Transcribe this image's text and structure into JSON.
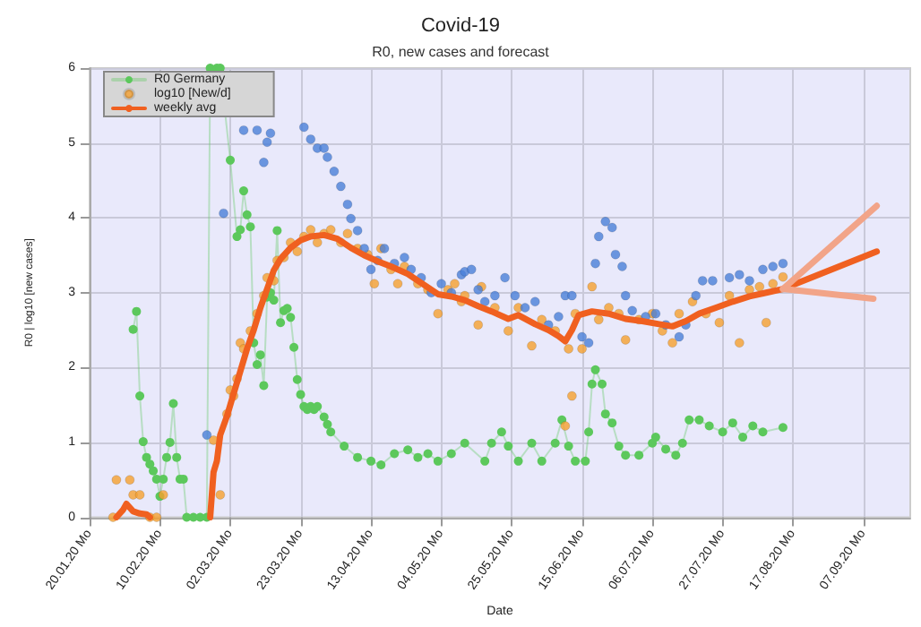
{
  "chart_data": {
    "type": "scatter",
    "title": "Covid-19",
    "subtitle": "R0, new cases and forecast",
    "xlabel": "Date",
    "ylabel": "R0 | log10 [new cases]",
    "xlim": [
      "2020-01-20",
      "2020-09-21"
    ],
    "ylim": [
      0,
      6
    ],
    "yticks": [
      0,
      1,
      2,
      3,
      4,
      5,
      6
    ],
    "xticks": [
      {
        "value": "2020-01-20",
        "label": "20.01.20 Mo"
      },
      {
        "value": "2020-02-10",
        "label": "10.02.20 Mo"
      },
      {
        "value": "2020-03-02",
        "label": "02.03.20 Mo"
      },
      {
        "value": "2020-03-23",
        "label": "23.03.20 Mo"
      },
      {
        "value": "2020-04-13",
        "label": "13.04.20 Mo"
      },
      {
        "value": "2020-05-04",
        "label": "04.05.20 Mo"
      },
      {
        "value": "2020-05-25",
        "label": "25.05.20 Mo"
      },
      {
        "value": "2020-06-15",
        "label": "15.06.20 Mo"
      },
      {
        "value": "2020-07-06",
        "label": "06.07.20 Mo"
      },
      {
        "value": "2020-07-27",
        "label": "27.07.20 Mo"
      },
      {
        "value": "2020-08-17",
        "label": "17.08.20 Mo"
      },
      {
        "value": "2020-09-07",
        "label": "07.09.20 Mo"
      }
    ],
    "grid": true,
    "legend": "top left",
    "series": [
      {
        "name": "R0 Germany",
        "type": "line",
        "marker": "circle",
        "color": "#5cc85c",
        "x": [
          "2020-02-02",
          "2020-02-03",
          "2020-02-04",
          "2020-02-05",
          "2020-02-06",
          "2020-02-07",
          "2020-02-08",
          "2020-02-09",
          "2020-02-10",
          "2020-02-11",
          "2020-02-12",
          "2020-02-13",
          "2020-02-14",
          "2020-02-15",
          "2020-02-16",
          "2020-02-17",
          "2020-02-18",
          "2020-02-20",
          "2020-02-22",
          "2020-02-24",
          "2020-02-25",
          "2020-02-27",
          "2020-02-28",
          "2020-03-02",
          "2020-03-04",
          "2020-03-05",
          "2020-03-06",
          "2020-03-07",
          "2020-03-08",
          "2020-03-09",
          "2020-03-10",
          "2020-03-11",
          "2020-03-12",
          "2020-03-13",
          "2020-03-14",
          "2020-03-15",
          "2020-03-16",
          "2020-03-17",
          "2020-03-18",
          "2020-03-19",
          "2020-03-20",
          "2020-03-21",
          "2020-03-22",
          "2020-03-23",
          "2020-03-24",
          "2020-03-25",
          "2020-03-26",
          "2020-03-27",
          "2020-03-28",
          "2020-03-30",
          "2020-03-31",
          "2020-04-01",
          "2020-04-05",
          "2020-04-09",
          "2020-04-13",
          "2020-04-16",
          "2020-04-20",
          "2020-04-24",
          "2020-04-27",
          "2020-04-30",
          "2020-05-03",
          "2020-05-07",
          "2020-05-11",
          "2020-05-17",
          "2020-05-19",
          "2020-05-22",
          "2020-05-24",
          "2020-05-27",
          "2020-05-31",
          "2020-06-03",
          "2020-06-07",
          "2020-06-09",
          "2020-06-11",
          "2020-06-13",
          "2020-06-16",
          "2020-06-17",
          "2020-06-18",
          "2020-06-19",
          "2020-06-21",
          "2020-06-22",
          "2020-06-24",
          "2020-06-26",
          "2020-06-28",
          "2020-07-02",
          "2020-07-06",
          "2020-07-07",
          "2020-07-10",
          "2020-07-13",
          "2020-07-15",
          "2020-07-17",
          "2020-07-20",
          "2020-07-23",
          "2020-07-27",
          "2020-07-30",
          "2020-08-02",
          "2020-08-05",
          "2020-08-08",
          "2020-08-14"
        ],
        "values": [
          2.51,
          2.75,
          1.62,
          1.01,
          0.8,
          0.71,
          0.62,
          0.51,
          0.28,
          0.51,
          0.8,
          1.0,
          1.52,
          0.8,
          0.51,
          0.51,
          0,
          0,
          0,
          0,
          6,
          6,
          6,
          4.77,
          3.75,
          3.84,
          4.36,
          4.04,
          3.88,
          2.33,
          2.04,
          2.17,
          1.76,
          2.94,
          3.0,
          2.9,
          3.83,
          2.6,
          2.76,
          2.79,
          2.67,
          2.27,
          1.84,
          1.64,
          1.48,
          1.44,
          1.48,
          1.44,
          1.48,
          1.34,
          1.24,
          1.14,
          0.95,
          0.8,
          0.75,
          0.7,
          0.85,
          0.9,
          0.8,
          0.85,
          0.75,
          0.85,
          0.99,
          0.75,
          0.99,
          1.14,
          0.95,
          0.75,
          0.99,
          0.75,
          0.99,
          1.3,
          0.95,
          0.75,
          0.75,
          1.14,
          1.78,
          1.97,
          1.78,
          1.38,
          1.26,
          0.95,
          0.83,
          0.83,
          0.99,
          1.07,
          0.91,
          0.83,
          0.99,
          1.3,
          1.3,
          1.22,
          1.14,
          1.26,
          1.07,
          1.22,
          1.14,
          1.2
        ]
      },
      {
        "name": "log10 [New/d]",
        "marker": "circle",
        "color": "#f5a030",
        "x": [
          "2020-01-27",
          "2020-01-28",
          "2020-02-01",
          "2020-02-02",
          "2020-02-04",
          "2020-02-07",
          "2020-02-09",
          "2020-02-11",
          "2020-02-26",
          "2020-02-28",
          "2020-03-01",
          "2020-03-02",
          "2020-03-03",
          "2020-03-04",
          "2020-03-05",
          "2020-03-06",
          "2020-03-08",
          "2020-03-10",
          "2020-03-12",
          "2020-03-13",
          "2020-03-15",
          "2020-03-16",
          "2020-03-18",
          "2020-03-20",
          "2020-03-22",
          "2020-03-24",
          "2020-03-26",
          "2020-03-28",
          "2020-03-30",
          "2020-04-01",
          "2020-04-04",
          "2020-04-06",
          "2020-04-09",
          "2020-04-12",
          "2020-04-14",
          "2020-04-16",
          "2020-04-19",
          "2020-04-21",
          "2020-04-23",
          "2020-04-27",
          "2020-04-30",
          "2020-05-03",
          "2020-05-06",
          "2020-05-08",
          "2020-05-10",
          "2020-05-11",
          "2020-05-15",
          "2020-05-16",
          "2020-05-20",
          "2020-05-24",
          "2020-05-27",
          "2020-05-31",
          "2020-06-03",
          "2020-06-07",
          "2020-06-10",
          "2020-06-11",
          "2020-06-12",
          "2020-06-13",
          "2020-06-15",
          "2020-06-18",
          "2020-06-20",
          "2020-06-23",
          "2020-06-26",
          "2020-06-28",
          "2020-07-02",
          "2020-07-06",
          "2020-07-09",
          "2020-07-12",
          "2020-07-14",
          "2020-07-18",
          "2020-07-22",
          "2020-07-26",
          "2020-07-29",
          "2020-08-01",
          "2020-08-04",
          "2020-08-07",
          "2020-08-09",
          "2020-08-11",
          "2020-08-14"
        ],
        "values": [
          0,
          0.5,
          0.5,
          0.3,
          0.3,
          0,
          0,
          0.3,
          1.03,
          0.3,
          1.38,
          1.7,
          1.62,
          1.85,
          2.33,
          2.25,
          2.49,
          2.72,
          2.96,
          3.2,
          3.16,
          3.43,
          3.47,
          3.67,
          3.55,
          3.75,
          3.84,
          3.67,
          3.79,
          3.84,
          3.67,
          3.79,
          3.59,
          3.51,
          3.12,
          3.59,
          3.31,
          3.12,
          3.35,
          3.12,
          3.04,
          2.72,
          3.04,
          3.12,
          2.88,
          2.96,
          2.57,
          3.08,
          2.8,
          2.49,
          2.8,
          2.29,
          2.64,
          2.49,
          1.22,
          2.25,
          1.62,
          2.72,
          2.25,
          3.08,
          2.64,
          2.8,
          2.72,
          2.37,
          2.64,
          2.72,
          2.49,
          2.33,
          2.72,
          2.88,
          2.72,
          2.6,
          2.96,
          2.33,
          3.04,
          3.08,
          2.6,
          3.12,
          3.21
        ]
      },
      {
        "marker": "circle",
        "color": "#4a7fd8",
        "x": [
          "2020-02-24",
          "2020-02-29",
          "2020-03-04",
          "2020-03-06",
          "2020-03-08",
          "2020-03-10",
          "2020-03-12",
          "2020-03-13",
          "2020-03-14",
          "2020-03-16",
          "2020-03-21",
          "2020-03-22",
          "2020-03-24",
          "2020-03-26",
          "2020-03-28",
          "2020-03-30",
          "2020-03-31",
          "2020-04-02",
          "2020-04-04",
          "2020-04-06",
          "2020-04-07",
          "2020-04-09",
          "2020-04-11",
          "2020-04-13",
          "2020-04-15",
          "2020-04-17",
          "2020-04-20",
          "2020-04-23",
          "2020-04-25",
          "2020-04-28",
          "2020-05-01",
          "2020-05-04",
          "2020-05-07",
          "2020-05-10",
          "2020-05-11",
          "2020-05-13",
          "2020-05-15",
          "2020-05-17",
          "2020-05-20",
          "2020-05-23",
          "2020-05-26",
          "2020-05-29",
          "2020-06-01",
          "2020-06-05",
          "2020-06-08",
          "2020-06-10",
          "2020-06-12",
          "2020-06-15",
          "2020-06-17",
          "2020-06-19",
          "2020-06-20",
          "2020-06-22",
          "2020-06-24",
          "2020-06-25",
          "2020-06-27",
          "2020-06-28",
          "2020-06-30",
          "2020-07-04",
          "2020-07-07",
          "2020-07-10",
          "2020-07-14",
          "2020-07-16",
          "2020-07-19",
          "2020-07-21",
          "2020-07-24",
          "2020-07-29",
          "2020-08-01",
          "2020-08-04",
          "2020-08-08",
          "2020-08-11",
          "2020-08-14"
        ],
        "values": [
          1.1,
          4.06,
          null,
          5.17,
          null,
          5.17,
          4.74,
          5.01,
          5.13,
          null,
          null,
          null,
          5.21,
          5.05,
          4.93,
          4.93,
          4.81,
          4.62,
          4.42,
          4.18,
          3.99,
          3.83,
          3.59,
          3.31,
          3.43,
          3.59,
          3.39,
          3.47,
          3.31,
          3.2,
          3.0,
          3.12,
          3.0,
          3.24,
          3.28,
          3.31,
          3.04,
          2.88,
          2.96,
          3.2,
          2.96,
          2.8,
          2.88,
          2.57,
          2.68,
          2.96,
          2.96,
          2.41,
          2.33,
          3.39,
          3.75,
          3.95,
          3.87,
          3.51,
          3.35,
          2.96,
          2.76,
          2.68,
          2.72,
          2.57,
          2.41,
          2.57,
          2.96,
          3.16,
          3.16,
          3.2,
          3.24,
          3.16,
          3.31,
          3.35,
          3.39
        ]
      },
      {
        "name": "weekly avg",
        "type": "line",
        "marker": "none",
        "color": "#f06020",
        "x": [
          "2020-01-28",
          "2020-01-30",
          "2020-01-31",
          "2020-02-02",
          "2020-02-04",
          "2020-02-06",
          "2020-02-07",
          "2020-02-16",
          "2020-02-25",
          "2020-02-26",
          "2020-02-27",
          "2020-02-28",
          "2020-03-01",
          "2020-03-03",
          "2020-03-05",
          "2020-03-07",
          "2020-03-09",
          "2020-03-11",
          "2020-03-13",
          "2020-03-15",
          "2020-03-17",
          "2020-03-20",
          "2020-03-23",
          "2020-03-26",
          "2020-03-30",
          "2020-04-03",
          "2020-04-07",
          "2020-04-11",
          "2020-04-15",
          "2020-04-19",
          "2020-04-24",
          "2020-04-29",
          "2020-05-03",
          "2020-05-07",
          "2020-05-11",
          "2020-05-15",
          "2020-05-19",
          "2020-05-24",
          "2020-05-27",
          "2020-06-01",
          "2020-06-05",
          "2020-06-08",
          "2020-06-10",
          "2020-06-12",
          "2020-06-14",
          "2020-06-18",
          "2020-06-23",
          "2020-06-28",
          "2020-07-03",
          "2020-07-08",
          "2020-07-12",
          "2020-07-16",
          "2020-07-20",
          "2020-07-25",
          "2020-07-30",
          "2020-08-04",
          "2020-08-09",
          "2020-08-14",
          "2020-09-11"
        ],
        "values": [
          0,
          0.1,
          0.18,
          0.08,
          0.05,
          0.04,
          0,
          null,
          0,
          0.6,
          0.75,
          1.1,
          1.35,
          1.65,
          1.95,
          2.25,
          2.5,
          2.8,
          3.05,
          3.3,
          3.45,
          3.6,
          3.7,
          3.75,
          3.77,
          3.72,
          3.6,
          3.5,
          3.42,
          3.35,
          3.25,
          3.1,
          2.98,
          2.95,
          2.9,
          2.82,
          2.75,
          2.65,
          2.7,
          2.58,
          2.5,
          2.42,
          2.35,
          2.5,
          2.7,
          2.75,
          2.72,
          2.65,
          2.62,
          2.58,
          2.55,
          2.62,
          2.72,
          2.8,
          2.88,
          2.95,
          3.0,
          3.05,
          3.55
        ]
      },
      {
        "type": "line",
        "marker": "none",
        "color": "#f2a488",
        "x": [
          "2020-08-14",
          "2020-09-11"
        ],
        "values": [
          3.05,
          4.16
        ]
      },
      {
        "type": "line",
        "marker": "none",
        "color": "#f2a488",
        "x": [
          "2020-08-14",
          "2020-09-10"
        ],
        "values": [
          3.05,
          2.92
        ]
      }
    ]
  }
}
